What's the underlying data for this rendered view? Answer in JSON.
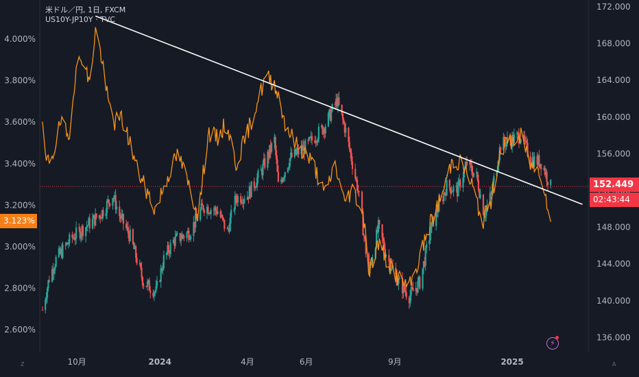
{
  "legend": {
    "line1": "米ドル／円, 1日, FXCM",
    "line2": "US10Y-JP10Y · TVC"
  },
  "tags": {
    "left_value": "3.123%",
    "right_price": "152.449",
    "right_timer": "02:43:44"
  },
  "corner": {
    "left": "Z",
    "right": "A"
  },
  "colors": {
    "background": "#161a25",
    "up": "#26a69a",
    "down": "#ef5350",
    "spread_line": "#f7931a",
    "trendline": "#ffffff",
    "price_line": "#f23645"
  },
  "chart_data": {
    "type": "line",
    "x_ticks": [
      "10月",
      "2024",
      "4月",
      "6月",
      "9月",
      "2025"
    ],
    "y_left": {
      "label": "",
      "ticks": [
        "4.000%",
        "3.800%",
        "3.600%",
        "3.400%",
        "3.200%",
        "3.000%",
        "2.800%",
        "2.600%"
      ],
      "range": [
        2.55,
        4.15
      ]
    },
    "y_right": {
      "label": "",
      "ticks": [
        "172.000",
        "168.000",
        "164.000",
        "160.000",
        "156.000",
        "152.000",
        "148.000",
        "144.000",
        "140.000",
        "136.000"
      ],
      "range": [
        134.5,
        172.5
      ]
    },
    "current_price": 152.449,
    "current_spread": 3.123,
    "series": [
      {
        "name": "米ドル／円",
        "type": "candlestick",
        "axis": "right",
        "path": [
          [
            "2023-09-01",
            139.0
          ],
          [
            "2023-09-08",
            142.5
          ],
          [
            "2023-09-15",
            144.5
          ],
          [
            "2023-09-22",
            145.5
          ],
          [
            "2023-10-01",
            146.8
          ],
          [
            "2023-10-15",
            148.0
          ],
          [
            "2023-11-01",
            149.5
          ],
          [
            "2023-11-13",
            151.5
          ],
          [
            "2023-11-20",
            149.3
          ],
          [
            "2023-12-01",
            147.0
          ],
          [
            "2023-12-08",
            144.5
          ],
          [
            "2023-12-15",
            142.0
          ],
          [
            "2023-12-28",
            141.0
          ],
          [
            "2024-01-05",
            144.5
          ],
          [
            "2024-01-15",
            146.5
          ],
          [
            "2024-02-01",
            147.5
          ],
          [
            "2024-02-15",
            150.3
          ],
          [
            "2024-03-01",
            149.8
          ],
          [
            "2024-03-11",
            147.5
          ],
          [
            "2024-03-20",
            151.2
          ],
          [
            "2024-04-01",
            151.5
          ],
          [
            "2024-04-15",
            154.0
          ],
          [
            "2024-04-29",
            157.5
          ],
          [
            "2024-05-03",
            152.5
          ],
          [
            "2024-05-15",
            155.5
          ],
          [
            "2024-06-01",
            156.8
          ],
          [
            "2024-06-20",
            159.0
          ],
          [
            "2024-07-03",
            161.8
          ],
          [
            "2024-07-12",
            158.5
          ],
          [
            "2024-07-25",
            152.0
          ],
          [
            "2024-08-05",
            143.0
          ],
          [
            "2024-08-15",
            148.0
          ],
          [
            "2024-08-25",
            144.5
          ],
          [
            "2024-09-05",
            142.0
          ],
          [
            "2024-09-16",
            140.5
          ],
          [
            "2024-09-27",
            142.0
          ],
          [
            "2024-10-01",
            144.0
          ],
          [
            "2024-10-10",
            148.5
          ],
          [
            "2024-10-25",
            152.5
          ],
          [
            "2024-11-05",
            152.0
          ],
          [
            "2024-11-15",
            155.0
          ],
          [
            "2024-11-25",
            153.5
          ],
          [
            "2024-12-03",
            149.5
          ],
          [
            "2024-12-10",
            151.5
          ],
          [
            "2024-12-20",
            157.0
          ],
          [
            "2025-01-10",
            158.0
          ],
          [
            "2025-01-20",
            155.5
          ],
          [
            "2025-02-01",
            155.0
          ],
          [
            "2025-02-10",
            152.4
          ]
        ]
      },
      {
        "name": "US10Y-JP10Y",
        "type": "line",
        "axis": "left",
        "path": [
          [
            "2023-09-01",
            3.56
          ],
          [
            "2023-09-05",
            3.4
          ],
          [
            "2023-09-12",
            3.45
          ],
          [
            "2023-09-20",
            3.6
          ],
          [
            "2023-09-28",
            3.52
          ],
          [
            "2023-10-05",
            3.83
          ],
          [
            "2023-10-12",
            3.92
          ],
          [
            "2023-10-20",
            3.78
          ],
          [
            "2023-10-26",
            4.05
          ],
          [
            "2023-11-01",
            3.92
          ],
          [
            "2023-11-08",
            3.7
          ],
          [
            "2023-11-15",
            3.6
          ],
          [
            "2023-11-22",
            3.62
          ],
          [
            "2023-12-01",
            3.5
          ],
          [
            "2023-12-08",
            3.38
          ],
          [
            "2023-12-15",
            3.3
          ],
          [
            "2023-12-27",
            3.18
          ],
          [
            "2024-01-10",
            3.35
          ],
          [
            "2024-01-20",
            3.45
          ],
          [
            "2024-02-01",
            3.28
          ],
          [
            "2024-02-10",
            3.15
          ],
          [
            "2024-02-20",
            3.55
          ],
          [
            "2024-03-01",
            3.52
          ],
          [
            "2024-03-10",
            3.6
          ],
          [
            "2024-03-20",
            3.4
          ],
          [
            "2024-04-01",
            3.55
          ],
          [
            "2024-04-10",
            3.68
          ],
          [
            "2024-04-20",
            3.82
          ],
          [
            "2024-04-30",
            3.78
          ],
          [
            "2024-05-10",
            3.6
          ],
          [
            "2024-05-20",
            3.5
          ],
          [
            "2024-06-01",
            3.45
          ],
          [
            "2024-06-10",
            3.38
          ],
          [
            "2024-06-20",
            3.25
          ],
          [
            "2024-07-01",
            3.4
          ],
          [
            "2024-07-10",
            3.22
          ],
          [
            "2024-07-20",
            3.28
          ],
          [
            "2024-08-01",
            3.12
          ],
          [
            "2024-08-05",
            2.88
          ],
          [
            "2024-08-15",
            3.02
          ],
          [
            "2024-08-25",
            2.92
          ],
          [
            "2024-09-05",
            2.85
          ],
          [
            "2024-09-16",
            2.8
          ],
          [
            "2024-09-27",
            2.95
          ],
          [
            "2024-10-07",
            3.1
          ],
          [
            "2024-10-20",
            3.25
          ],
          [
            "2024-10-31",
            3.42
          ],
          [
            "2024-11-10",
            3.4
          ],
          [
            "2024-11-20",
            3.3
          ],
          [
            "2024-12-01",
            3.12
          ],
          [
            "2024-12-10",
            3.22
          ],
          [
            "2024-12-20",
            3.48
          ],
          [
            "2025-01-10",
            3.53
          ],
          [
            "2025-01-20",
            3.4
          ],
          [
            "2025-02-01",
            3.35
          ],
          [
            "2025-02-10",
            3.12
          ]
        ]
      }
    ],
    "trendline": {
      "from": [
        "2023-10-26",
        171.0
      ],
      "to": [
        "2025-03-15",
        150.5
      ]
    }
  }
}
